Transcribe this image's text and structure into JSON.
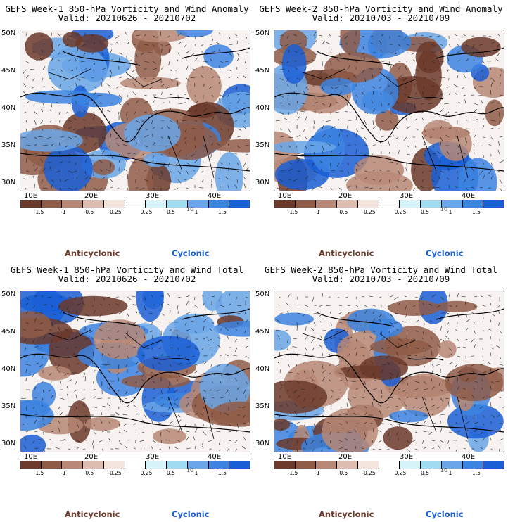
{
  "panels": [
    {
      "title": "GEFS Week-1 850-hPa Vorticity and Wind Anomaly",
      "valid": "Valid: 20210626 - 20210702",
      "seed": 3
    },
    {
      "title": "GEFS Week-2 850-hPa Vorticity and Wind Anomaly",
      "valid": "Valid: 20210703 - 20210709",
      "seed": 7
    },
    {
      "title": "GEFS Week-1 850-hPa Vorticity and Wind Total",
      "valid": "Valid: 20210626 - 20210702",
      "seed": 11
    },
    {
      "title": "GEFS Week-2 850-hPa Vorticity and Wind Total",
      "valid": "Valid: 20210703 - 20210709",
      "seed": 17
    }
  ],
  "axis": {
    "lat_labels": [
      "50N",
      "45N",
      "40N",
      "35N",
      "30N"
    ],
    "lon_labels": [
      "10E",
      "20E",
      "30E",
      "40E"
    ]
  },
  "colorbar": {
    "labels": [
      "-1.5",
      "-1",
      "-0.5",
      "-0.25",
      "0.25",
      "0.5",
      "1",
      "1.5"
    ],
    "scale_note": "10",
    "colors": [
      "#6b3a2a",
      "#8f5c48",
      "#b78876",
      "#dcbdb0",
      "#f3e4dd",
      "#ffffff",
      "#d8f4fb",
      "#9fdcf2",
      "#6aa6e8",
      "#3c84e0",
      "#1a5fd6"
    ]
  },
  "legend": {
    "anticyclonic": "Anticyclonic",
    "cyclonic": "Cyclonic"
  }
}
